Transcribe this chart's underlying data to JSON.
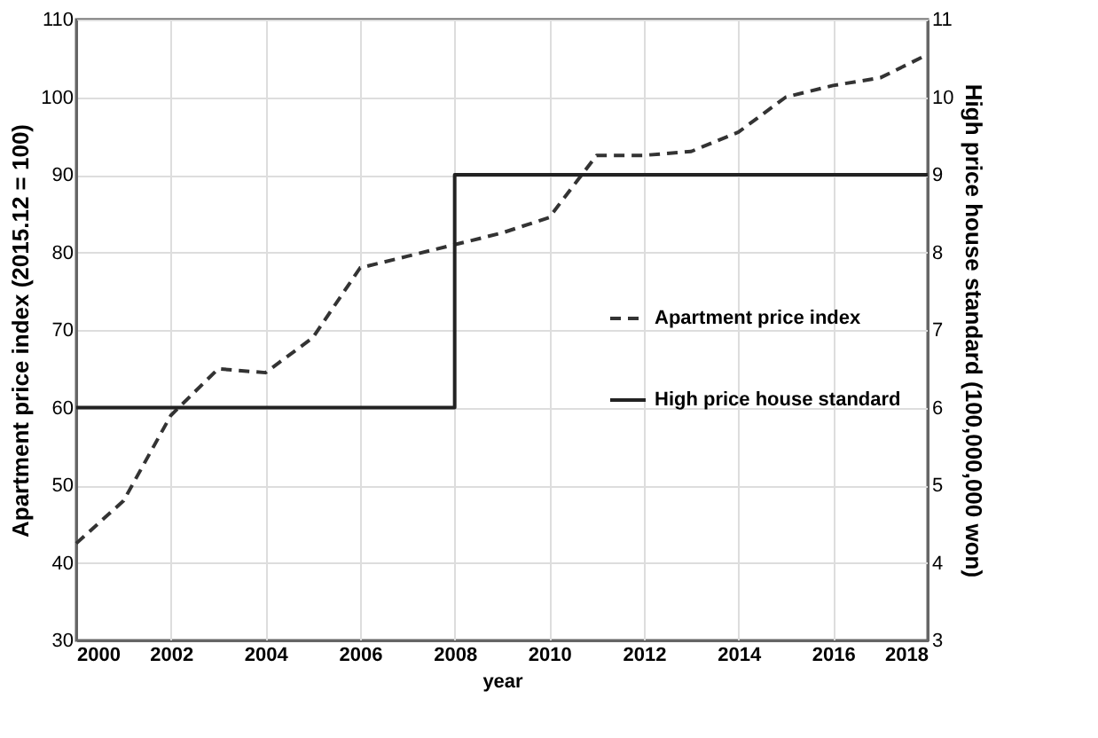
{
  "chart_data": {
    "type": "line",
    "xlabel": "year",
    "ylabel": "Apartment price index (2015.12 = 100)",
    "y2label": "High price house standard (100,000,000 won)",
    "series": [
      {
        "name": "Apartment price index",
        "color": "#333333",
        "line_style": "dashed",
        "x": [
          2000,
          2001,
          2002,
          2003,
          2004,
          2005,
          2006,
          2007,
          2008,
          2009,
          2010,
          2011,
          2012,
          2013,
          2014,
          2015,
          2016,
          2017,
          2018
        ],
        "values": [
          42.5,
          48,
          59,
          65,
          64.5,
          69,
          78,
          79.5,
          81,
          82.5,
          84.5,
          92.5,
          92.5,
          93,
          95.5,
          100,
          101.5,
          102.5,
          105.5
        ]
      },
      {
        "name": "High price house standard",
        "type": "step",
        "axis": "y2",
        "color": "#222222",
        "line_style": "solid",
        "x": [
          2000,
          2008,
          2018
        ],
        "values": [
          6,
          9,
          9
        ]
      }
    ],
    "xlim": [
      2000,
      2018
    ],
    "xticks": [
      2000,
      2002,
      2004,
      2006,
      2008,
      2010,
      2012,
      2014,
      2016,
      2018
    ],
    "ylim": [
      30,
      110
    ],
    "yticks": [
      30,
      40,
      50,
      60,
      70,
      80,
      90,
      100,
      110
    ],
    "y2lim": [
      3,
      11
    ],
    "y2ticks": [
      3,
      4,
      5,
      6,
      7,
      8,
      9,
      10,
      11
    ],
    "grid": true,
    "legend": "right"
  }
}
